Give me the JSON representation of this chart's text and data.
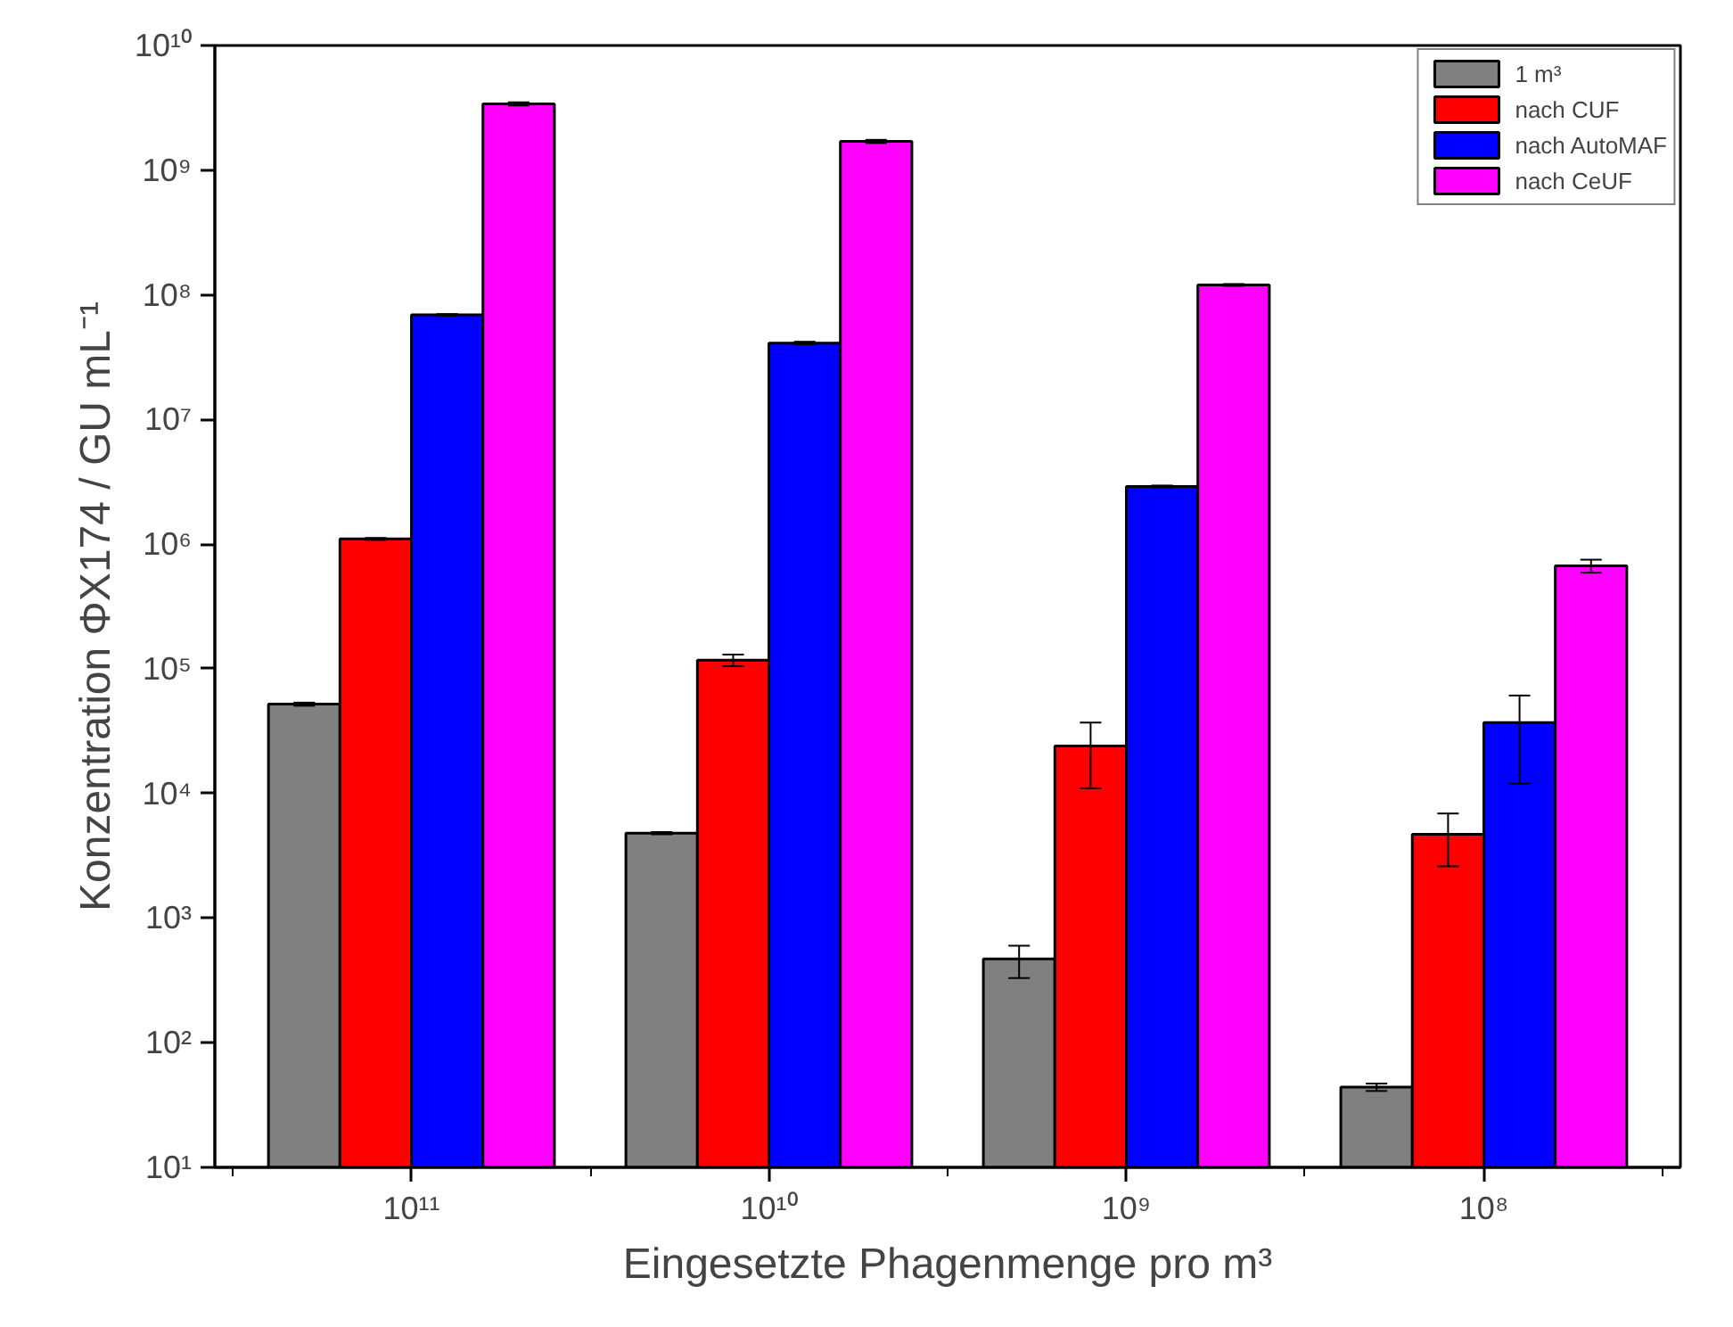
{
  "chart_data": {
    "type": "bar",
    "xlabel": "Eingesetzte Phagenmenge pro m³",
    "ylabel": "Konzentration ΦX174 / GU mL⁻¹",
    "categories": [
      "10¹¹",
      "10¹⁰",
      "10⁹",
      "10⁸"
    ],
    "series": [
      {
        "name": "1 m³",
        "color": "#808080",
        "values": [
          52000,
          4800,
          470,
          44
        ],
        "errors": [
          [
            50500,
            53500
          ],
          [
            4700,
            4900
          ],
          [
            330,
            600
          ],
          [
            41,
            47
          ]
        ]
      },
      {
        "name": "nach CUF",
        "color": "#ff0000",
        "values": [
          1100000,
          117000,
          24000,
          4700
        ],
        "errors": [
          [
            1080000,
            1120000
          ],
          [
            105000,
            130000
          ],
          [
            11000,
            37000
          ],
          [
            2600,
            6900
          ]
        ]
      },
      {
        "name": "nach AutoMAF",
        "color": "#0000ff",
        "values": [
          69000000,
          41000000,
          2900000,
          37000
        ],
        "errors": [
          [
            68000000,
            70000000
          ],
          [
            40000000,
            42000000
          ],
          [
            2850000,
            2950000
          ],
          [
            12000,
            61000
          ]
        ]
      },
      {
        "name": "nach CeUF",
        "color": "#ff00ff",
        "values": [
          3400000000,
          1700000000,
          120000000,
          670000
        ],
        "errors": [
          [
            3300000000,
            3500000000
          ],
          [
            1650000000,
            1750000000
          ],
          [
            118000000,
            122000000
          ],
          [
            590000,
            750000
          ]
        ]
      }
    ],
    "log": "y",
    "ylim": [
      10,
      10000000000
    ],
    "yticks": [
      {
        "value": 10,
        "label": "10¹"
      },
      {
        "value": 100,
        "label": "10²"
      },
      {
        "value": 1000,
        "label": "10³"
      },
      {
        "value": 10000,
        "label": "10⁴"
      },
      {
        "value": 100000,
        "label": "10⁵"
      },
      {
        "value": 1000000,
        "label": "10⁶"
      },
      {
        "value": 10000000,
        "label": "10⁷"
      },
      {
        "value": 100000000,
        "label": "10⁸"
      },
      {
        "value": 1000000000,
        "label": "10⁹"
      },
      {
        "value": 10000000000,
        "label": "10¹⁰"
      }
    ],
    "grid": false,
    "legend": "top right"
  }
}
